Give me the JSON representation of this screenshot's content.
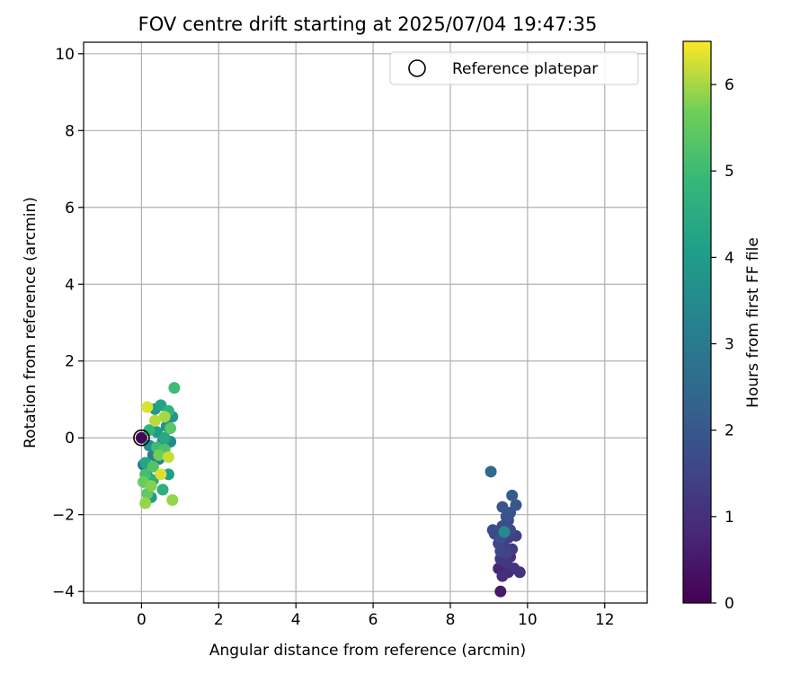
{
  "chart_data": {
    "type": "scatter",
    "title": "FOV centre drift starting at 2025/07/04 19:47:35",
    "xlabel": "Angular distance from reference (arcmin)",
    "ylabel": "Rotation from reference (arcmin)",
    "xlim": [
      -1.5,
      13.1
    ],
    "ylim": [
      -4.3,
      10.3
    ],
    "xticks": [
      0,
      2,
      4,
      6,
      8,
      10,
      12
    ],
    "yticks": [
      -4,
      -2,
      0,
      2,
      4,
      6,
      8,
      10
    ],
    "grid": true,
    "legend": {
      "position": "top-right",
      "entries": [
        "Reference platepar"
      ]
    },
    "reference_point": {
      "name": "Reference platepar",
      "x": 0,
      "y": 0
    },
    "colorbar": {
      "label": "Hours from first FF file",
      "colormap": "viridis",
      "range": [
        0,
        6.5
      ],
      "ticks": [
        0,
        1,
        2,
        3,
        4,
        5,
        6
      ]
    },
    "points": [
      {
        "x": 9.3,
        "y": -4.0,
        "h": 0.5
      },
      {
        "x": 9.25,
        "y": -3.4,
        "h": 0.8
      },
      {
        "x": 9.5,
        "y": -3.5,
        "h": 0.9
      },
      {
        "x": 9.35,
        "y": -3.6,
        "h": 1.0
      },
      {
        "x": 9.55,
        "y": -3.1,
        "h": 1.0
      },
      {
        "x": 9.8,
        "y": -3.5,
        "h": 1.1
      },
      {
        "x": 9.65,
        "y": -3.4,
        "h": 1.1
      },
      {
        "x": 9.45,
        "y": -3.25,
        "h": 1.2
      },
      {
        "x": 9.3,
        "y": -3.15,
        "h": 1.2
      },
      {
        "x": 9.6,
        "y": -2.9,
        "h": 1.3
      },
      {
        "x": 9.4,
        "y": -2.85,
        "h": 1.3
      },
      {
        "x": 9.7,
        "y": -2.55,
        "h": 1.4
      },
      {
        "x": 9.5,
        "y": -2.6,
        "h": 1.4
      },
      {
        "x": 9.25,
        "y": -2.75,
        "h": 1.5
      },
      {
        "x": 9.45,
        "y": -3.0,
        "h": 1.5
      },
      {
        "x": 9.3,
        "y": -2.95,
        "h": 1.55
      },
      {
        "x": 9.15,
        "y": -2.5,
        "h": 1.6
      },
      {
        "x": 9.35,
        "y": -2.3,
        "h": 1.6
      },
      {
        "x": 9.55,
        "y": -2.4,
        "h": 1.65
      },
      {
        "x": 9.1,
        "y": -2.4,
        "h": 1.7
      },
      {
        "x": 9.5,
        "y": -2.15,
        "h": 1.75
      },
      {
        "x": 9.3,
        "y": -2.6,
        "h": 1.8
      },
      {
        "x": 9.45,
        "y": -2.05,
        "h": 1.85
      },
      {
        "x": 9.55,
        "y": -1.95,
        "h": 1.9
      },
      {
        "x": 9.35,
        "y": -1.8,
        "h": 1.95
      },
      {
        "x": 9.7,
        "y": -1.75,
        "h": 2.0
      },
      {
        "x": 9.6,
        "y": -1.5,
        "h": 2.1
      },
      {
        "x": 9.05,
        "y": -0.88,
        "h": 2.5
      },
      {
        "x": 9.4,
        "y": -2.45,
        "h": 3.5
      },
      {
        "x": 0.0,
        "y": 0.0,
        "h": 0.1
      },
      {
        "x": 0.05,
        "y": -0.7,
        "h": 2.7
      },
      {
        "x": 0.15,
        "y": -1.0,
        "h": 3.0
      },
      {
        "x": 0.3,
        "y": -0.45,
        "h": 3.2
      },
      {
        "x": 0.45,
        "y": -0.55,
        "h": 3.3
      },
      {
        "x": 0.55,
        "y": -0.1,
        "h": 3.4
      },
      {
        "x": 0.75,
        "y": -0.1,
        "h": 3.5
      },
      {
        "x": 0.2,
        "y": -0.2,
        "h": 3.6
      },
      {
        "x": 0.65,
        "y": 0.3,
        "h": 3.7
      },
      {
        "x": 0.8,
        "y": 0.55,
        "h": 3.8
      },
      {
        "x": 0.35,
        "y": 0.75,
        "h": 3.9
      },
      {
        "x": 0.4,
        "y": 0.15,
        "h": 4.0
      },
      {
        "x": 0.25,
        "y": -1.55,
        "h": 4.0
      },
      {
        "x": 0.7,
        "y": -0.95,
        "h": 4.1
      },
      {
        "x": 0.5,
        "y": 0.85,
        "h": 4.2
      },
      {
        "x": 0.1,
        "y": -0.65,
        "h": 4.3
      },
      {
        "x": 0.6,
        "y": 0.0,
        "h": 4.4
      },
      {
        "x": 0.3,
        "y": -1.1,
        "h": 4.5
      },
      {
        "x": 0.55,
        "y": -1.35,
        "h": 4.6
      },
      {
        "x": 0.7,
        "y": 0.7,
        "h": 4.7
      },
      {
        "x": 0.2,
        "y": 0.2,
        "h": 4.8
      },
      {
        "x": 0.85,
        "y": 1.3,
        "h": 5.0
      },
      {
        "x": 0.4,
        "y": -0.25,
        "h": 5.0
      },
      {
        "x": 0.1,
        "y": -0.95,
        "h": 5.1
      },
      {
        "x": 0.6,
        "y": -0.3,
        "h": 5.2
      },
      {
        "x": 0.3,
        "y": -0.75,
        "h": 5.3
      },
      {
        "x": 0.75,
        "y": 0.25,
        "h": 5.4
      },
      {
        "x": 0.15,
        "y": -1.45,
        "h": 5.5
      },
      {
        "x": 0.05,
        "y": -1.15,
        "h": 5.6
      },
      {
        "x": 0.45,
        "y": -0.45,
        "h": 5.7
      },
      {
        "x": 0.25,
        "y": -1.25,
        "h": 5.8
      },
      {
        "x": 0.8,
        "y": -1.62,
        "h": 5.9
      },
      {
        "x": 0.1,
        "y": -1.7,
        "h": 5.9
      },
      {
        "x": 0.6,
        "y": 0.55,
        "h": 6.0
      },
      {
        "x": 0.35,
        "y": 0.45,
        "h": 6.1
      },
      {
        "x": 0.7,
        "y": -0.5,
        "h": 6.2
      },
      {
        "x": 0.15,
        "y": 0.8,
        "h": 6.3
      },
      {
        "x": 0.5,
        "y": -0.95,
        "h": 6.3
      }
    ]
  }
}
